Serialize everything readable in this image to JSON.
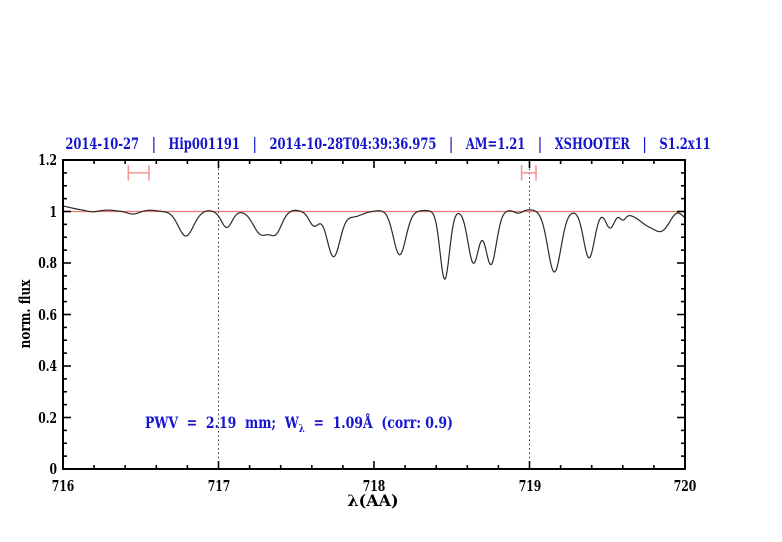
{
  "chart_data": {
    "type": "line",
    "title": "2014-10-27 | Hip001191 | 2014-10-28T04:39:36.975 | AM=1.21 | XSHOOTER | S1.2x11",
    "title_color": "#1515cf",
    "xlabel": "λ(AA)",
    "ylabel": "norm. flux",
    "xlim": [
      716,
      720
    ],
    "ylim": [
      0,
      1.2
    ],
    "x_ticks": [
      {
        "v": 716,
        "label": "716"
      },
      {
        "v": 717,
        "label": "717"
      },
      {
        "v": 718,
        "label": "718"
      },
      {
        "v": 719,
        "label": "719"
      },
      {
        "v": 720,
        "label": "720"
      }
    ],
    "x_minor_step": 0.2,
    "y_ticks": [
      {
        "v": 0,
        "label": "0"
      },
      {
        "v": 0.2,
        "label": "0.2"
      },
      {
        "v": 0.4,
        "label": "0.4"
      },
      {
        "v": 0.6,
        "label": "0.6"
      },
      {
        "v": 0.8,
        "label": "0.8"
      },
      {
        "v": 1,
        "label": "1"
      },
      {
        "v": 1.2,
        "label": "1.2"
      }
    ],
    "y_minor_step": 0.05,
    "grid": false,
    "continuum_level": 1.0,
    "continuum_line_color": "#ee7a70",
    "spectrum_color": "#2a2a2a",
    "dotted_guides": [
      717,
      719
    ],
    "guide_color": "#333333",
    "band_markers": [
      {
        "x1": 716.42,
        "x2": 716.553,
        "y": 1.15,
        "cap_half_height": 0.03
      },
      {
        "x1": 718.949,
        "x2": 719.042,
        "y": 1.15,
        "cap_half_height": 0.03
      }
    ],
    "marker_color": "#f49a93",
    "annotation": {
      "prefix": "PWV  =  2.19  mm;  W",
      "sub": "λ",
      "suffix": "  =  1.09Å  (corr: 0.9)",
      "color": "#1515cf"
    },
    "sample_step": 0.004,
    "absorption_lines": [
      {
        "c": 715.9,
        "a": 0.03,
        "s": 0.125
      },
      {
        "c": 716.19,
        "a": -0.004,
        "s": 0.03
      },
      {
        "c": 716.29,
        "a": 0.005,
        "s": 0.05
      },
      {
        "c": 716.45,
        "a": -0.01,
        "s": 0.035
      },
      {
        "c": 716.56,
        "a": 0.005,
        "s": 0.04
      },
      {
        "c": 716.79,
        "a": -0.095,
        "s": 0.048
      },
      {
        "c": 716.93,
        "a": 0.004,
        "s": 0.03
      },
      {
        "c": 717.053,
        "a": -0.062,
        "s": 0.034
      },
      {
        "c": 717.275,
        "a": -0.088,
        "s": 0.05
      },
      {
        "c": 717.37,
        "a": -0.075,
        "s": 0.038
      },
      {
        "c": 717.49,
        "a": 0.005,
        "s": 0.03
      },
      {
        "c": 717.615,
        "a": -0.055,
        "s": 0.032
      },
      {
        "c": 717.74,
        "a": -0.175,
        "s": 0.042
      },
      {
        "c": 717.87,
        "a": -0.02,
        "s": 0.05
      },
      {
        "c": 718.05,
        "a": 0.004,
        "s": 0.04
      },
      {
        "c": 718.165,
        "a": -0.168,
        "s": 0.04
      },
      {
        "c": 718.33,
        "a": 0.004,
        "s": 0.04
      },
      {
        "c": 718.455,
        "a": -0.263,
        "s": 0.03
      },
      {
        "c": 718.64,
        "a": -0.2,
        "s": 0.035
      },
      {
        "c": 718.752,
        "a": -0.205,
        "s": 0.035
      },
      {
        "c": 718.87,
        "a": 0.004,
        "s": 0.025
      },
      {
        "c": 718.93,
        "a": -0.008,
        "s": 0.025
      },
      {
        "c": 719.0,
        "a": 0.007,
        "s": 0.04
      },
      {
        "c": 719.16,
        "a": -0.235,
        "s": 0.042
      },
      {
        "c": 719.383,
        "a": -0.18,
        "s": 0.035
      },
      {
        "c": 719.518,
        "a": -0.062,
        "s": 0.028
      },
      {
        "c": 719.6,
        "a": -0.024,
        "s": 0.018
      },
      {
        "c": 719.72,
        "a": -0.018,
        "s": 0.1
      },
      {
        "c": 719.755,
        "a": -0.028,
        "s": 0.045
      },
      {
        "c": 719.85,
        "a": -0.066,
        "s": 0.05
      },
      {
        "c": 719.95,
        "a": 0.008,
        "s": 0.03
      },
      {
        "c": 720.02,
        "a": -0.03,
        "s": 0.035
      }
    ]
  }
}
